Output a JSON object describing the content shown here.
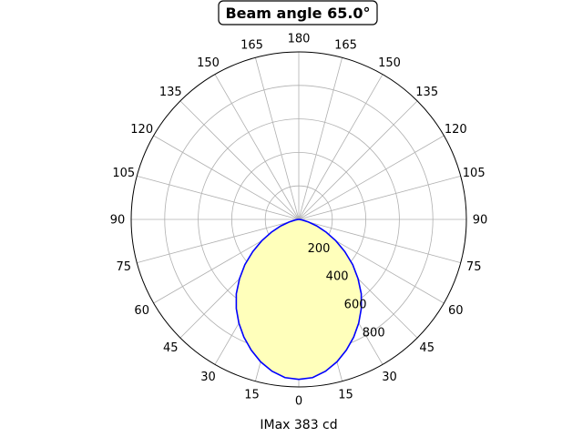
{
  "chart_data": {
    "type": "polar",
    "title": "Beam angle 65.0°",
    "xlabel": "IMax 383 cd",
    "angle_tick_labels": [
      "0",
      "15",
      "30",
      "45",
      "60",
      "75",
      "90",
      "105",
      "120",
      "135",
      "150",
      "165",
      "180",
      "165",
      "150",
      "135",
      "120",
      "105",
      "90",
      "75",
      "60",
      "45",
      "30",
      "15"
    ],
    "radial_ticks": [
      200,
      400,
      600,
      800
    ],
    "radial_tick_labels": [
      "200",
      "400",
      "600",
      "800"
    ],
    "rmax": 1000,
    "grid": true,
    "series": [
      {
        "color_line": "#0000ff",
        "color_fill": "#ffffbb",
        "angles": [
          0,
          5,
          10,
          15,
          20,
          25,
          30,
          35,
          40,
          45,
          50,
          55,
          60,
          65,
          70,
          75,
          80,
          85,
          90
        ],
        "values": [
          955,
          948,
          920,
          880,
          830,
          775,
          715,
          650,
          580,
          500,
          420,
          335,
          255,
          180,
          115,
          60,
          22,
          5,
          0
        ]
      }
    ]
  }
}
